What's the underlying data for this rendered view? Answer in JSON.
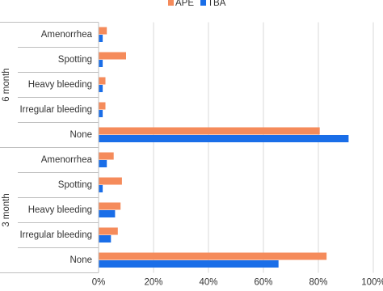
{
  "chart_data": {
    "type": "bar",
    "orientation": "horizontal",
    "groups": [
      {
        "name": "6 month",
        "categories": [
          "Amenorrhea",
          "Spotting",
          "Heavy bleeding",
          "Irregular bleeding",
          "None"
        ]
      },
      {
        "name": "3 month",
        "categories": [
          "Amenorrhea",
          "Spotting",
          "Heavy bleeding",
          "Irregular bleeding",
          "None"
        ]
      }
    ],
    "series": [
      {
        "name": "APE",
        "color": "#f58b5b",
        "values": [
          3,
          10,
          2.5,
          2.5,
          80.5,
          5.5,
          8.5,
          8,
          7,
          83
        ]
      },
      {
        "name": "TBA",
        "color": "#1a6ee8",
        "values": [
          1.5,
          1.5,
          1.5,
          1.5,
          91,
          3,
          1.5,
          6,
          4.5,
          65.5
        ]
      }
    ],
    "xlim": [
      0,
      100
    ],
    "xticks": [
      {
        "value": 0,
        "label": "0%"
      },
      {
        "value": 20,
        "label": "20%"
      },
      {
        "value": 40,
        "label": "40%"
      },
      {
        "value": 60,
        "label": "60%"
      },
      {
        "value": 80,
        "label": "80%"
      },
      {
        "value": 100,
        "label": "100%"
      }
    ],
    "grid": true,
    "legend": "top"
  }
}
